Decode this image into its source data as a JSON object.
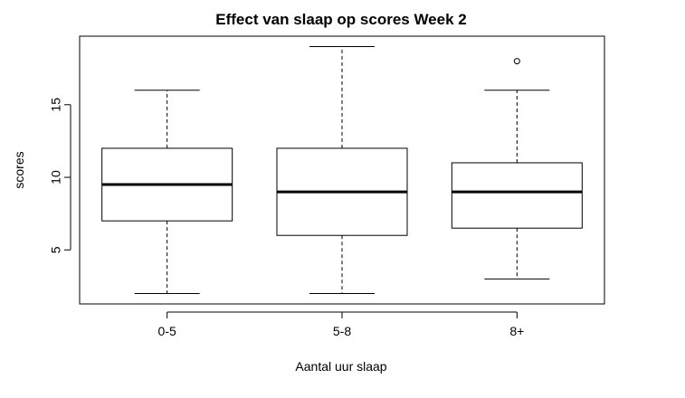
{
  "chart_data": {
    "type": "box",
    "title": "Effect van slaap op scores Week 2",
    "xlabel": "Aantal uur slaap",
    "ylabel": "scores",
    "categories": [
      "0-5",
      "5-8",
      "8+"
    ],
    "boxes": [
      {
        "category": "0-5",
        "whisker_low": 2,
        "q1": 7,
        "median": 9.5,
        "q3": 12,
        "whisker_high": 16,
        "outliers": []
      },
      {
        "category": "5-8",
        "whisker_low": 2,
        "q1": 6,
        "median": 9,
        "q3": 12,
        "whisker_high": 19,
        "outliers": []
      },
      {
        "category": "8+",
        "whisker_low": 3,
        "q1": 6.5,
        "median": 9,
        "q3": 11,
        "whisker_high": 16,
        "outliers": [
          18
        ]
      }
    ],
    "yticks": [
      5,
      10,
      15
    ],
    "ylim": [
      1.28,
      19.72
    ],
    "grid": false,
    "colors": {
      "box_fill": "#ffffff",
      "stroke": "#000000"
    }
  }
}
